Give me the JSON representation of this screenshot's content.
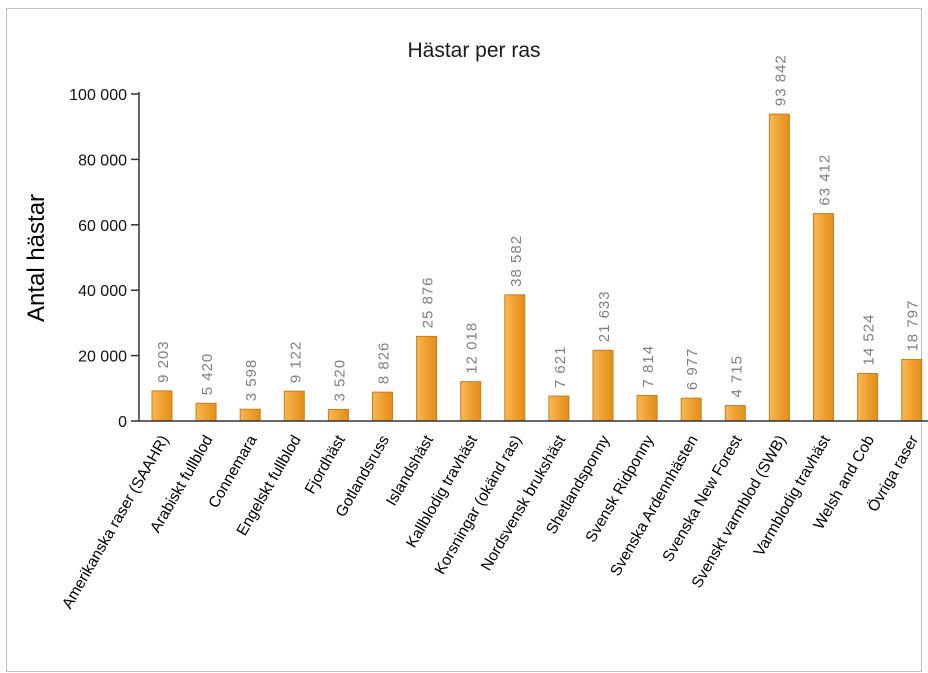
{
  "chart_data": {
    "type": "bar",
    "title": "Hästar per ras",
    "ylabel": "Antal hästar",
    "xlabel": "",
    "ylim": [
      0,
      100000
    ],
    "yticks": [
      "0",
      "20 000",
      "40 000",
      "60 000",
      "80 000",
      "100 000"
    ],
    "ytick_values": [
      0,
      20000,
      40000,
      60000,
      80000,
      100000
    ],
    "grid": false,
    "bar_color": "#f0a030",
    "bar_edge_color": "#c97e1a",
    "categories": [
      "Amerikanska raser (SAAHR)",
      "Arabiskt fullblod",
      "Connemara",
      "Engelskt fullblod",
      "Fjordhäst",
      "Gotlandsruss",
      "Islandshäst",
      "Kallblodig travhäst",
      "Korsningar (okänd ras)",
      "Nordsvensk brukshäst",
      "Shetlandsponny",
      "Svensk Ridponny",
      "Svenska Ardennhästen",
      "Svenska New Forest",
      "Svenskt varmblod (SWB)",
      "Varmblodig travhäst",
      "Welsh and Cob",
      "Övriga raser"
    ],
    "values": [
      9203,
      5420,
      3598,
      9122,
      3520,
      8826,
      25876,
      12018,
      38582,
      7621,
      21633,
      7814,
      6977,
      4715,
      93842,
      63412,
      14524,
      18797
    ],
    "value_labels": [
      "9 203",
      "5 420",
      "3 598",
      "9 122",
      "3 520",
      "8 826",
      "25 876",
      "12 018",
      "38 582",
      "7 621",
      "21 633",
      "7 814",
      "6 977",
      "4 715",
      "93 842",
      "63 412",
      "14 524",
      "18 797"
    ]
  }
}
